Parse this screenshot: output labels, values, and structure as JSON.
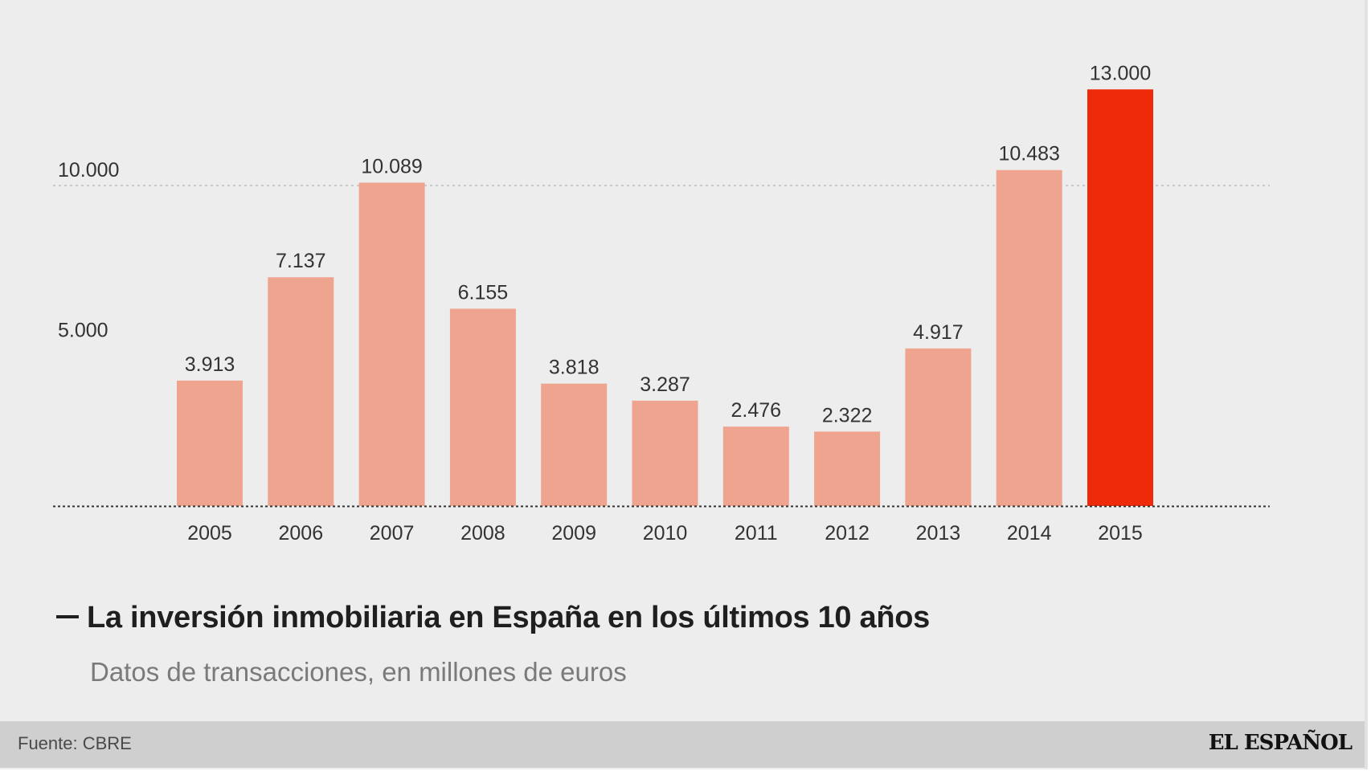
{
  "chart_data": {
    "type": "bar",
    "title": "La inversión inmobiliaria en España en los últimos 10 años",
    "subtitle": "Datos de transacciones, en millones de euros",
    "categories": [
      "2005",
      "2006",
      "2007",
      "2008",
      "2009",
      "2010",
      "2011",
      "2012",
      "2013",
      "2014",
      "2015"
    ],
    "values": [
      3913,
      7137,
      10089,
      6155,
      3818,
      3287,
      2476,
      2322,
      4917,
      10483,
      13000
    ],
    "value_labels": [
      "3.913",
      "7.137",
      "10.089",
      "6.155",
      "3.818",
      "3.287",
      "2.476",
      "2.322",
      "4.917",
      "10.483",
      "13.000"
    ],
    "y_ticks": [
      5000,
      10000
    ],
    "y_tick_labels": [
      "5.000",
      "10.000"
    ],
    "ylim": [
      0,
      13000
    ],
    "xlabel": "",
    "ylabel": "",
    "grid": "dotted horizontal at 10.000",
    "highlight_index": 10
  },
  "colors": {
    "bar": "#eea48e",
    "highlight": "#ee2a0a",
    "background": "#ededed",
    "text": "#333333",
    "gridline": "#bdbdbd",
    "baseline": "#333333"
  },
  "footer": {
    "source": "Fuente: CBRE",
    "brand": "EL ESPAÑOL"
  }
}
